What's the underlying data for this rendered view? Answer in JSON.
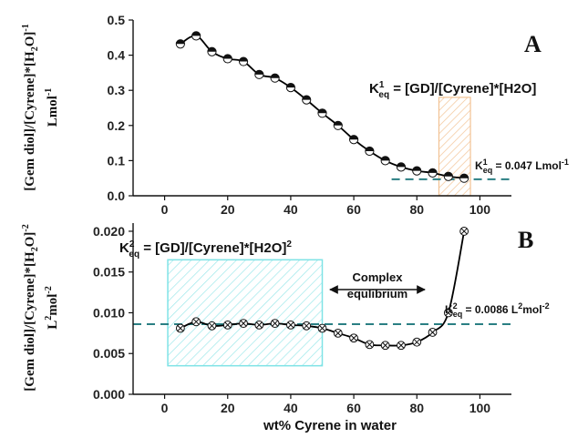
{
  "chart_data": [
    {
      "type": "line",
      "panel_label": "A",
      "ylabel_line1": "[Gem diol]/[Cyrene]*[H",
      "ylabel_sub": "2",
      "ylabel_line1_end": "O]",
      "ylabel_sup": "-1",
      "ylabel_line2": "Lmol",
      "ylabel_line2_sup": "-1",
      "xlim": [
        -10,
        110
      ],
      "ylim": [
        0.0,
        0.5
      ],
      "x_ticks": [
        "0",
        "20",
        "40",
        "60",
        "80",
        "100"
      ],
      "y_ticks": [
        "0.0",
        "0.1",
        "0.2",
        "0.3",
        "0.4",
        "0.5"
      ],
      "series": [
        {
          "x": [
            5,
            10,
            15,
            20,
            25,
            30,
            35,
            40,
            45,
            50,
            55,
            60,
            65,
            70,
            75,
            80,
            85,
            90,
            95
          ],
          "y": [
            0.432,
            0.455,
            0.41,
            0.39,
            0.382,
            0.345,
            0.335,
            0.308,
            0.273,
            0.235,
            0.2,
            0.16,
            0.127,
            0.1,
            0.082,
            0.071,
            0.065,
            0.055,
            0.05
          ]
        }
      ],
      "equation": {
        "k": "K",
        "sup": "1",
        "sub": "eq",
        "rest": " = [GD]/[Cyrene]*[H2O]"
      },
      "keq_label": {
        "k": "K",
        "sup": "1",
        "sub": "eq",
        "rest": " = 0.047 Lmol",
        "unit_sup": "-1"
      },
      "keq_value": 0.047,
      "region": {
        "x0": 87,
        "x1": 97,
        "y0": 0.0,
        "y1": 0.28,
        "color": "#f2c293"
      },
      "colors": {
        "curve": "#000000",
        "dash": "#2a7f83"
      }
    },
    {
      "type": "line",
      "panel_label": "B",
      "ylabel_line1": "[Gem diol]/[Cyrene]*[H",
      "ylabel_sub": "2",
      "ylabel_line1_end": "O]",
      "ylabel_sup": "-2",
      "ylabel_line2": "L",
      "ylabel_line2_sup1": "2",
      "ylabel_line2_mid": "mol",
      "ylabel_line2_sup2": "-2",
      "xlabel": "wt% Cyrene in water",
      "xlim": [
        -10,
        110
      ],
      "ylim": [
        0.0,
        0.021
      ],
      "x_ticks": [
        "0",
        "20",
        "40",
        "60",
        "80",
        "100"
      ],
      "y_ticks": [
        "0.000",
        "0.005",
        "0.010",
        "0.015",
        "0.020"
      ],
      "series": [
        {
          "x": [
            5,
            10,
            15,
            20,
            25,
            30,
            35,
            40,
            45,
            50,
            55,
            60,
            65,
            70,
            75,
            80,
            85,
            90,
            95
          ],
          "y": [
            0.0081,
            0.0089,
            0.0084,
            0.0085,
            0.0087,
            0.0085,
            0.0087,
            0.0085,
            0.0084,
            0.0081,
            0.0075,
            0.0069,
            0.0061,
            0.006,
            0.006,
            0.0064,
            0.0076,
            0.01,
            0.02
          ]
        }
      ],
      "equation": {
        "k": "K",
        "sup": "2",
        "sub": "eq",
        "rest": " = [GD]/[Cyrene]*[H2O]",
        "rest_sup": "2"
      },
      "keq_label": {
        "k": "K",
        "sup": "2",
        "sub": "eq",
        "rest": " = 0.0086 L",
        "unit_sup1": "2",
        "unit_mid": "mol",
        "unit_sup2": "-2"
      },
      "keq_value": 0.0086,
      "annotation": {
        "line1": "Complex",
        "line2": "equlibrium"
      },
      "region": {
        "x0": 1,
        "x1": 50,
        "y0": 0.0035,
        "y1": 0.0165,
        "color": "#7fe3e6"
      },
      "colors": {
        "curve": "#000000",
        "dash": "#2a7f83"
      }
    }
  ]
}
